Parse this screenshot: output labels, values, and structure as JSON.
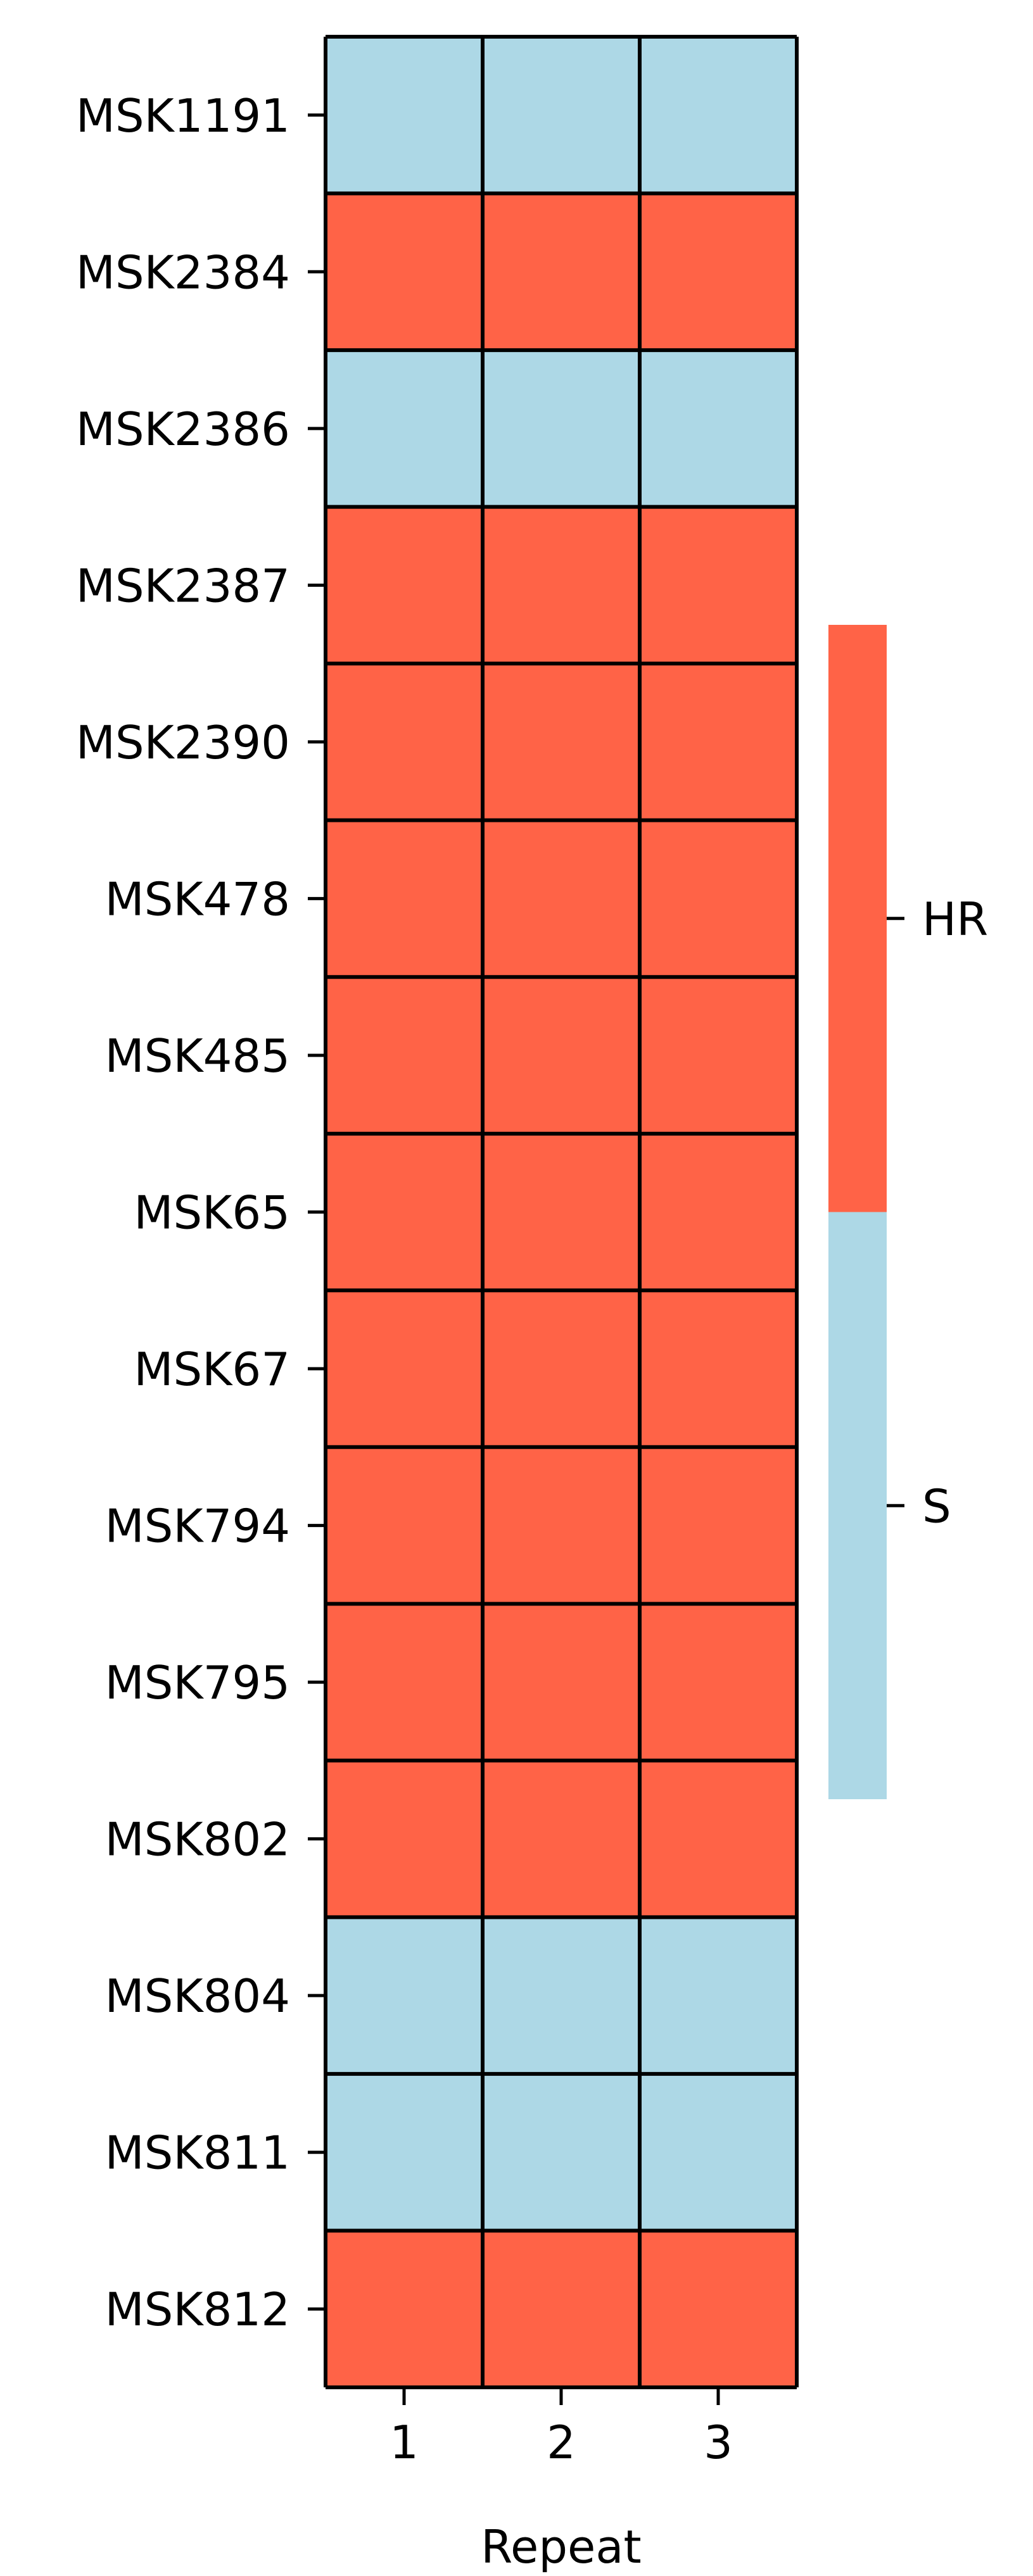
{
  "chart_data": {
    "type": "heatmap",
    "title": "",
    "xlabel": "Repeat",
    "ylabel": "",
    "x_categories": [
      "1",
      "2",
      "3"
    ],
    "y_categories": [
      "MSK1191",
      "MSK2384",
      "MSK2386",
      "MSK2387",
      "MSK2390",
      "MSK478",
      "MSK485",
      "MSK65",
      "MSK67",
      "MSK794",
      "MSK795",
      "MSK802",
      "MSK804",
      "MSK811",
      "MSK812"
    ],
    "values": [
      [
        "S",
        "S",
        "S"
      ],
      [
        "HR",
        "HR",
        "HR"
      ],
      [
        "S",
        "S",
        "S"
      ],
      [
        "HR",
        "HR",
        "HR"
      ],
      [
        "HR",
        "HR",
        "HR"
      ],
      [
        "HR",
        "HR",
        "HR"
      ],
      [
        "HR",
        "HR",
        "HR"
      ],
      [
        "HR",
        "HR",
        "HR"
      ],
      [
        "HR",
        "HR",
        "HR"
      ],
      [
        "HR",
        "HR",
        "HR"
      ],
      [
        "HR",
        "HR",
        "HR"
      ],
      [
        "HR",
        "HR",
        "HR"
      ],
      [
        "S",
        "S",
        "S"
      ],
      [
        "S",
        "S",
        "S"
      ],
      [
        "HR",
        "HR",
        "HR"
      ]
    ],
    "legend": {
      "type": "colorbar",
      "placement": "right",
      "entries": [
        {
          "label": "HR",
          "color": "#ff6347"
        },
        {
          "label": "S",
          "color": "#add8e6"
        }
      ]
    },
    "colors": {
      "HR": "#ff6347",
      "S": "#add8e6",
      "grid": "#000000"
    },
    "grid": true
  }
}
